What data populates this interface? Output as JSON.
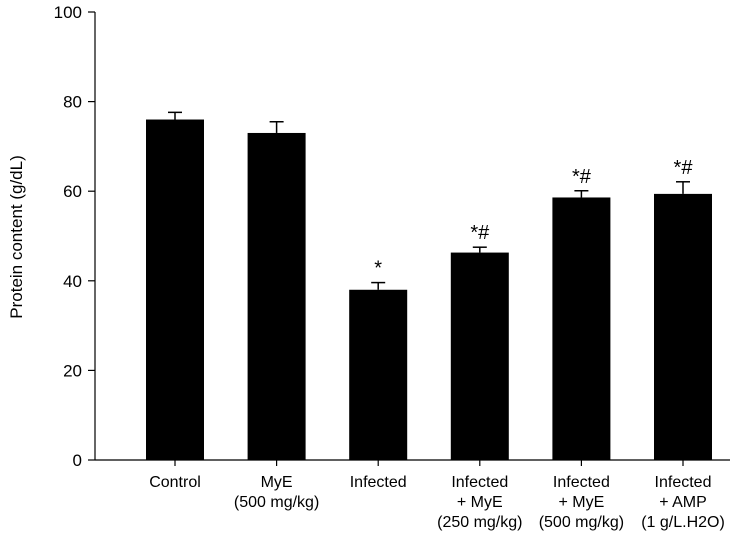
{
  "chart_data": {
    "type": "bar",
    "title": "",
    "xlabel": "",
    "ylabel": "Protein content (g/dL)",
    "ylim": [
      0,
      100
    ],
    "yticks": [
      "0",
      "20",
      "40",
      "60",
      "80",
      "100"
    ],
    "grid": false,
    "bar_color": "#000000",
    "categories": [
      [
        "Control"
      ],
      [
        "MyE",
        "(500 mg/kg)"
      ],
      [
        "Infected"
      ],
      [
        "Infected",
        "+ MyE",
        "(250 mg/kg)"
      ],
      [
        "Infected",
        "+ MyE",
        "(500 mg/kg)"
      ],
      [
        "Infected",
        "+ AMP",
        "(1 g/L.H2O)"
      ]
    ],
    "values": [
      76,
      73,
      38,
      46.3,
      58.6,
      59.4
    ],
    "errors": [
      1.6,
      2.5,
      1.6,
      1.2,
      1.5,
      2.7
    ],
    "annotations": [
      "",
      "",
      "*",
      "*#",
      "*#",
      "*#"
    ]
  }
}
